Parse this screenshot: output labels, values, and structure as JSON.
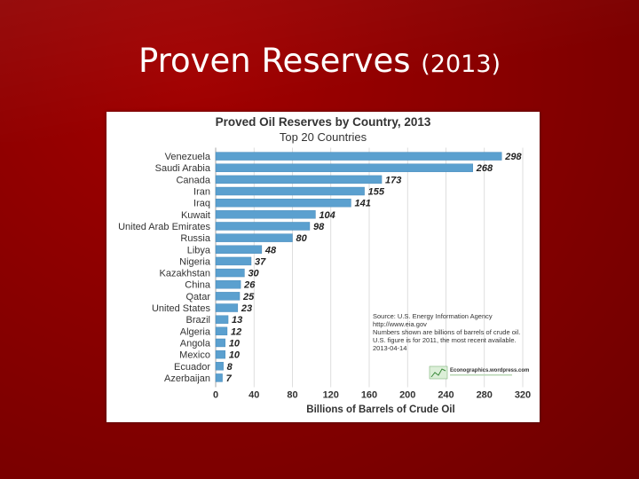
{
  "slide": {
    "title_main": "Proven Reserves",
    "title_year": "(2013)"
  },
  "colors": {
    "background": "#8a0000",
    "bar": "#5ba0cf",
    "bar_edge": "#3d82b5"
  },
  "chart_data": {
    "type": "bar",
    "orientation": "horizontal",
    "title": "Proved Oil Reserves by Country, 2013",
    "subtitle": "Top 20 Countries",
    "xlabel": "Billions of Barrels of Crude Oil",
    "ylabel": "",
    "xlim": [
      0,
      320
    ],
    "xticks": [
      "0",
      "40",
      "80",
      "120",
      "160",
      "200",
      "240",
      "280",
      "320"
    ],
    "grid": true,
    "categories": [
      "Venezuela",
      "Saudi Arabia",
      "Canada",
      "Iran",
      "Iraq",
      "Kuwait",
      "United Arab Emirates",
      "Russia",
      "Libya",
      "Nigeria",
      "Kazakhstan",
      "China",
      "Qatar",
      "United States",
      "Brazil",
      "Algeria",
      "Angola",
      "Mexico",
      "Ecuador",
      "Azerbaijan"
    ],
    "values": [
      298,
      268,
      173,
      155,
      141,
      104,
      98,
      80,
      48,
      37,
      30,
      26,
      25,
      23,
      13,
      12,
      10,
      10,
      8,
      7
    ],
    "source_lines": [
      "Source:  U.S. Energy Information Agency",
      "http://www.eia.gov",
      "Numbers shown are billions of barrels of crude oil.",
      "U.S. figure is for 2011, the most recent available.",
      "2013-04-14"
    ],
    "logo_text": "Econographics.wordpress.com"
  }
}
